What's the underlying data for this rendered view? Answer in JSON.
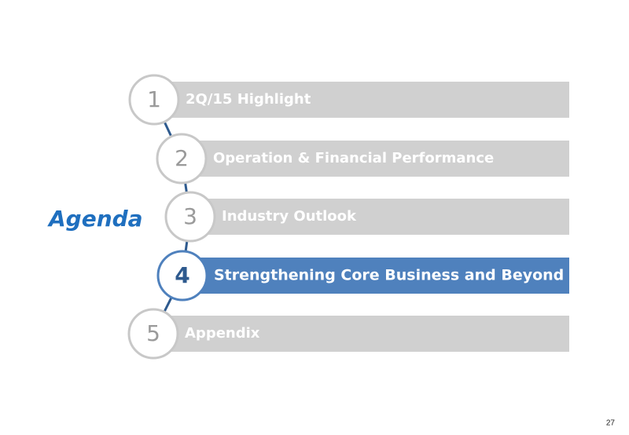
{
  "title": "Agenda",
  "items": [
    {
      "number": "1",
      "label": "2Q/15 Highlight",
      "highlighted": false
    },
    {
      "number": "2",
      "label": "Operation & Financial Performance",
      "highlighted": false
    },
    {
      "number": "3",
      "label": "Industry Outlook",
      "highlighted": false
    },
    {
      "number": "4",
      "label": "Strengthening Core Business and Beyond",
      "highlighted": true
    },
    {
      "number": "5",
      "label": "Appendix",
      "highlighted": false
    }
  ],
  "page_number": "27"
}
